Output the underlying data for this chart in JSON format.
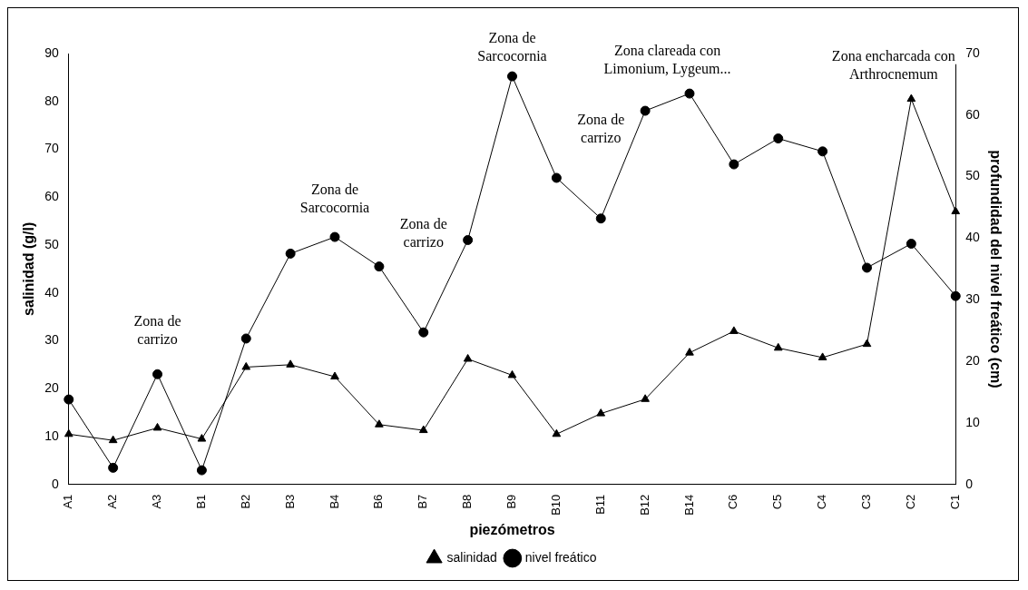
{
  "chart_data": {
    "type": "line",
    "xlabel": "piezómetros",
    "ylabel": "salinidad (g/l)",
    "y2label": "profundidad del nivel freático (cm)",
    "categories": [
      "A1",
      "A2",
      "A3",
      "B1",
      "B2",
      "B3",
      "B4",
      "B6",
      "B7",
      "B8",
      "B9",
      "B10",
      "B11",
      "B12",
      "B14",
      "C6",
      "C5",
      "C4",
      "C3",
      "C2",
      "C1"
    ],
    "series": [
      {
        "name": "salinidad",
        "color": "#000000",
        "marker": "triangle",
        "values": [
          10.5,
          9.2,
          11.8,
          9.5,
          24.5,
          25,
          22.5,
          12.5,
          11.3,
          26.2,
          22.8,
          10.5,
          14.8,
          17.8,
          27.5,
          32,
          28.5,
          26.5,
          29.3,
          80.5,
          57
        ]
      },
      {
        "name": "nivel freático",
        "color": "#000000",
        "marker": "circle",
        "axis": "y2",
        "values": [
          13.8,
          2.7,
          17.9,
          2.3,
          23.7,
          37.5,
          40.2,
          35.4,
          24.7,
          39.7,
          66.3,
          49.8,
          43.2,
          60.7,
          63.5,
          52,
          56.2,
          54.1,
          35.2,
          39.1,
          30.6
        ]
      }
    ],
    "ylim": [
      0,
      90
    ],
    "yticks": [
      0,
      10,
      20,
      30,
      40,
      50,
      60,
      70,
      80,
      90
    ],
    "y2lim": [
      0,
      70
    ],
    "y2ticks": [
      0,
      10,
      20,
      30,
      40,
      50,
      60,
      70
    ],
    "grid": false,
    "legend": "bottom",
    "line_style": "solid",
    "annotations": [
      "Zona de\ncarrizo",
      "Zona de\nSarcocornia",
      "Zona de\ncarrizo",
      "Zona de\nSarcocornia",
      "Zona de\ncarrizo",
      "Zona clareada con\nLimonium, Lygeum...",
      "Zona encharcada con\nArthrocnemum"
    ]
  }
}
